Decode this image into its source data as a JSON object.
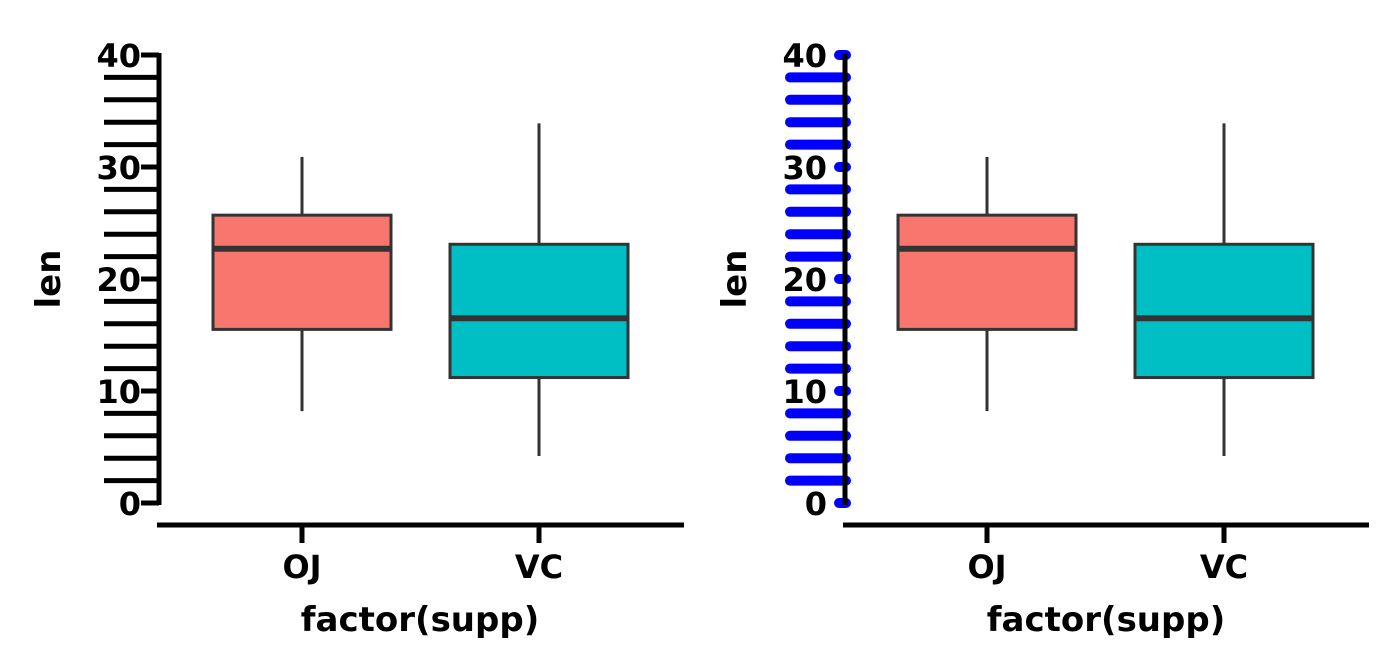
{
  "chart_data": [
    {
      "type": "box",
      "xlabel": "factor(supp)",
      "ylabel": "len",
      "categories": [
        "OJ",
        "VC"
      ],
      "ylim": [
        0,
        40
      ],
      "major_ticks": [
        0,
        10,
        20,
        30,
        40
      ],
      "minor_tick_step": 2,
      "minor_tick_style": "long-black",
      "grid": false,
      "legend": "none",
      "boxes": [
        {
          "category": "OJ",
          "min": 8.2,
          "q1": 15.5,
          "median": 22.7,
          "q3": 25.7,
          "max": 30.9,
          "fill": "#F8766D"
        },
        {
          "category": "VC",
          "min": 4.2,
          "q1": 11.2,
          "median": 16.5,
          "q3": 23.1,
          "max": 33.9,
          "fill": "#00BFC4"
        }
      ]
    },
    {
      "type": "box",
      "xlabel": "factor(supp)",
      "ylabel": "len",
      "categories": [
        "OJ",
        "VC"
      ],
      "ylim": [
        0,
        40
      ],
      "major_ticks": [
        0,
        10,
        20,
        30,
        40
      ],
      "minor_tick_step": 2,
      "minor_tick_style": "blue-rounded",
      "minor_tick_color": "#0000FF",
      "grid": false,
      "legend": "none",
      "boxes": [
        {
          "category": "OJ",
          "min": 8.2,
          "q1": 15.5,
          "median": 22.7,
          "q3": 25.7,
          "max": 30.9,
          "fill": "#F8766D"
        },
        {
          "category": "VC",
          "min": 4.2,
          "q1": 11.2,
          "median": 16.5,
          "q3": 23.1,
          "max": 33.9,
          "fill": "#00BFC4"
        }
      ]
    }
  ]
}
